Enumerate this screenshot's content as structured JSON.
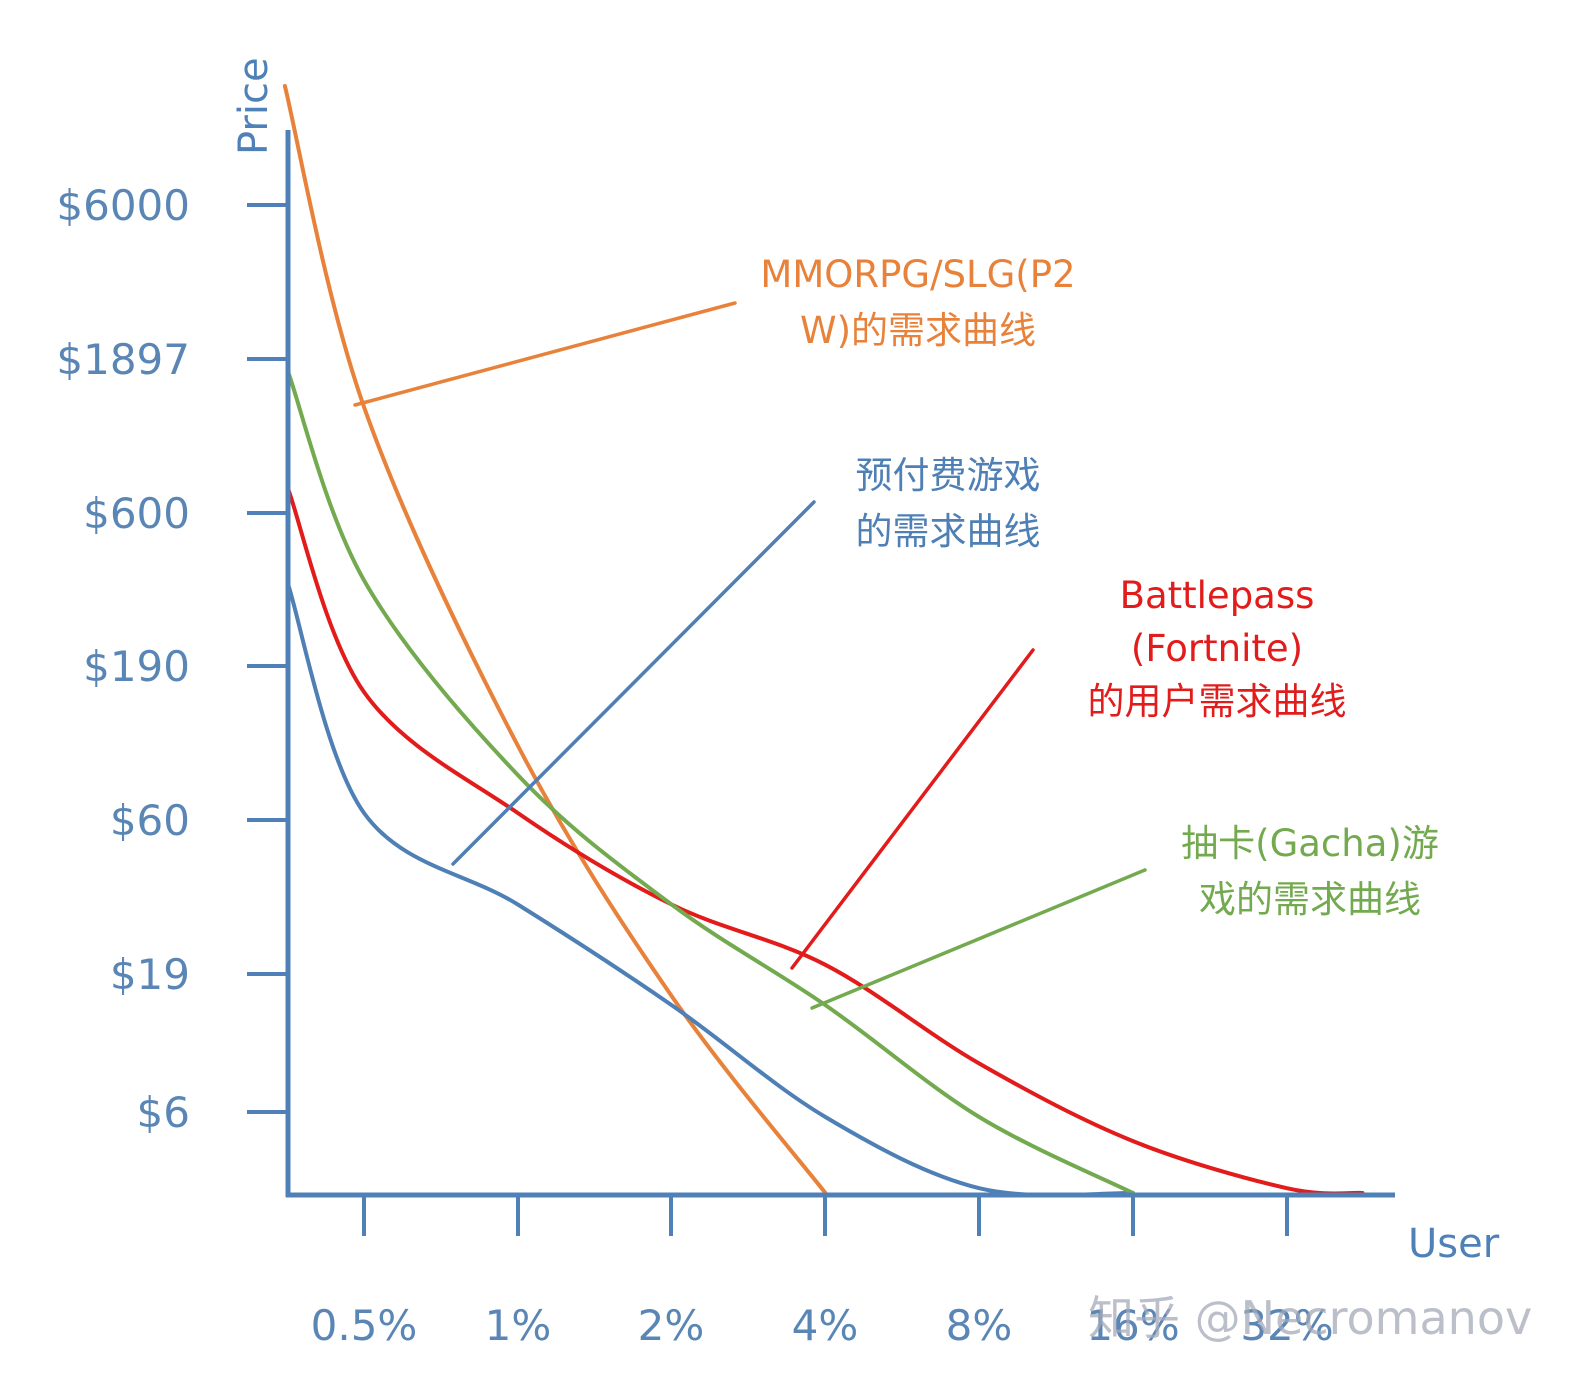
{
  "chart_data": {
    "type": "line",
    "ylabel": "Price",
    "xlabel": "User",
    "y_ticks": [
      "$6000",
      "$1897",
      "$600",
      "$190",
      "$60",
      "$19",
      "$6"
    ],
    "x_ticks": [
      "0.5%",
      "1%",
      "2%",
      "4%",
      "8%",
      "16%",
      "32%"
    ],
    "colors": {
      "axis": "#4f81b8",
      "tick_text": "#5a86b5"
    },
    "series": [
      {
        "name": "MMORPG/SLG(P2W)的需求曲线",
        "color": "#e8823a",
        "points": [
          {
            "x": "0.35%",
            "y": "$15000"
          },
          {
            "x": "0.5%",
            "y": "$1300"
          },
          {
            "x": "1%",
            "y": "$100"
          },
          {
            "x": "2%",
            "y": "$15"
          },
          {
            "x": "4%",
            "y": "$3"
          }
        ]
      },
      {
        "name": "预付费游戏的需求曲线",
        "color": "#4e7fb5",
        "points": [
          {
            "x": "0%",
            "y": "$340"
          },
          {
            "x": "0.5%",
            "y": "$60"
          },
          {
            "x": "1%",
            "y": "$30"
          },
          {
            "x": "2%",
            "y": "$14"
          },
          {
            "x": "4%",
            "y": "$6"
          },
          {
            "x": "8%",
            "y": "$3.5"
          },
          {
            "x": "16%",
            "y": "$3"
          }
        ]
      },
      {
        "name": "Battlepass (Fortnite) 的用户需求曲线",
        "color": "#e21b1b",
        "points": [
          {
            "x": "0%",
            "y": "$700"
          },
          {
            "x": "0.5%",
            "y": "$150"
          },
          {
            "x": "1%",
            "y": "$60"
          },
          {
            "x": "2%",
            "y": "$30"
          },
          {
            "x": "4%",
            "y": "$19"
          },
          {
            "x": "8%",
            "y": "$9"
          },
          {
            "x": "16%",
            "y": "$5"
          },
          {
            "x": "32%",
            "y": "$3.5"
          },
          {
            "x": "45%",
            "y": "$3"
          }
        ]
      },
      {
        "name": "抽卡(Gacha)游戏的需求曲线",
        "color": "#73aa4f",
        "points": [
          {
            "x": "0%",
            "y": "$1700"
          },
          {
            "x": "0.5%",
            "y": "$350"
          },
          {
            "x": "1%",
            "y": "$80"
          },
          {
            "x": "2%",
            "y": "$30"
          },
          {
            "x": "4%",
            "y": "$14"
          },
          {
            "x": "8%",
            "y": "$6"
          },
          {
            "x": "16%",
            "y": "$3"
          }
        ]
      }
    ],
    "annotations": [
      {
        "lines": [
          "MMORPG/SLG(P2",
          "W)的需求曲线"
        ],
        "color": "#e8823a"
      },
      {
        "lines": [
          "预付费游戏",
          "的需求曲线"
        ],
        "color": "#4e7fb5"
      },
      {
        "lines": [
          "Battlepass",
          "(Fortnite)",
          "的用户需求曲线"
        ],
        "color": "#e21b1b"
      },
      {
        "lines": [
          "抽卡(Gacha)游",
          "戏的需求曲线"
        ],
        "color": "#73aa4f"
      }
    ],
    "watermark": "知乎 @Necromanov"
  }
}
